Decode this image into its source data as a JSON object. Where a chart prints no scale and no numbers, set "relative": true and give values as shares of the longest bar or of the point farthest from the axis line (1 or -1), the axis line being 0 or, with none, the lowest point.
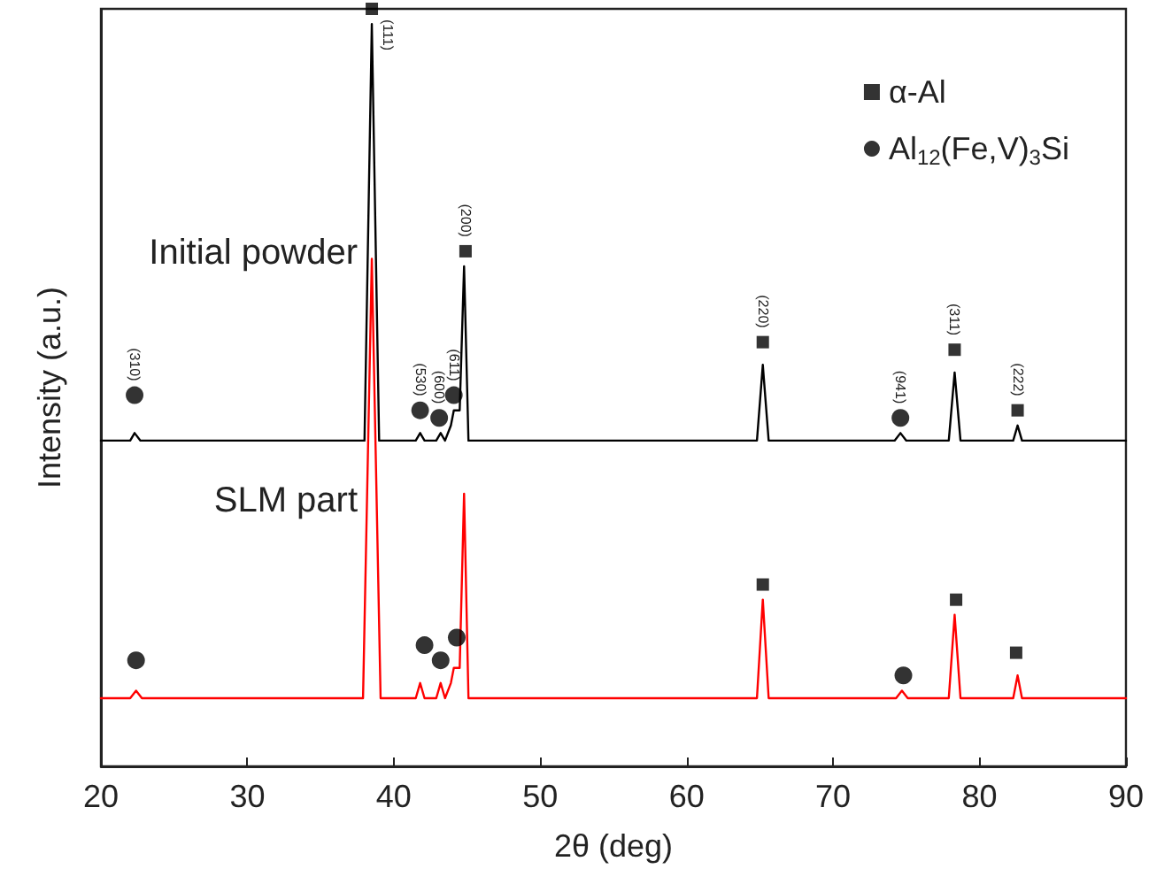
{
  "chart_data": {
    "type": "line",
    "relative": true,
    "xlabel": "2θ (deg)",
    "ylabel": "Intensity (a.u.)",
    "xlim": [
      20,
      90
    ],
    "xticks": [
      20,
      30,
      40,
      50,
      60,
      70,
      80,
      90
    ],
    "tick_labels": "x",
    "legend": "top right",
    "series": [
      {
        "name": "Initial powder",
        "color": "#000000",
        "x": [
          20,
          22.0,
          22.3,
          22.7,
          38.0,
          38.5,
          39.0,
          41.5,
          41.8,
          42.1,
          42.9,
          43.2,
          43.5,
          43.9,
          44.1,
          44.5,
          44.8,
          45.1,
          64.8,
          65.2,
          65.6,
          74.2,
          74.6,
          75.0,
          77.9,
          78.3,
          78.7,
          82.3,
          82.6,
          82.9,
          90
        ],
        "values": [
          0.43,
          0.43,
          0.44,
          0.43,
          0.43,
          0.98,
          0.43,
          0.43,
          0.44,
          0.43,
          0.43,
          0.44,
          0.43,
          0.45,
          0.47,
          0.47,
          0.66,
          0.43,
          0.43,
          0.53,
          0.43,
          0.43,
          0.44,
          0.43,
          0.43,
          0.52,
          0.43,
          0.43,
          0.45,
          0.43,
          0.43
        ]
      },
      {
        "name": "SLM part",
        "color": "#ff0000",
        "x": [
          20,
          22.0,
          22.4,
          22.8,
          37.9,
          38.5,
          39.1,
          41.5,
          41.8,
          42.1,
          42.9,
          43.2,
          43.5,
          43.9,
          44.1,
          44.5,
          44.8,
          45.1,
          64.8,
          65.2,
          65.6,
          74.3,
          74.7,
          75.1,
          77.9,
          78.3,
          78.7,
          82.3,
          82.6,
          82.9,
          90
        ],
        "values": [
          0.09,
          0.09,
          0.1,
          0.09,
          0.09,
          0.67,
          0.09,
          0.09,
          0.11,
          0.09,
          0.09,
          0.11,
          0.09,
          0.11,
          0.13,
          0.13,
          0.36,
          0.09,
          0.09,
          0.22,
          0.09,
          0.09,
          0.1,
          0.09,
          0.09,
          0.2,
          0.09,
          0.09,
          0.12,
          0.09,
          0.09
        ]
      },
      {
        "name": "α-Al",
        "type": "scatter",
        "marker": "square",
        "color": "#000000",
        "x": [
          38.5,
          44.9,
          65.2,
          78.3,
          82.6,
          65.2,
          78.4,
          82.5
        ],
        "values": [
          1.0,
          0.68,
          0.56,
          0.55,
          0.47,
          0.24,
          0.22,
          0.15
        ]
      },
      {
        "name": "Al$_{12}$(Fe,V)$_{3}$Si",
        "type": "scatter",
        "marker": "circle",
        "color": "#000000",
        "x": [
          22.3,
          41.8,
          43.1,
          44.1,
          74.6,
          22.4,
          42.1,
          43.2,
          44.3,
          74.8
        ],
        "values": [
          0.49,
          0.47,
          0.46,
          0.49,
          0.46,
          0.14,
          0.16,
          0.14,
          0.17,
          0.12
        ]
      }
    ],
    "annotations": [
      {
        "text": "(310)",
        "x": 22.3,
        "y": 0.49
      },
      {
        "text": "(111)",
        "x": 38.5,
        "y": 1.0
      },
      {
        "text": "(530)",
        "x": 41.8,
        "y": 0.47
      },
      {
        "text": "(600)",
        "x": 43.1,
        "y": 0.46
      },
      {
        "text": "(611)",
        "x": 44.1,
        "y": 0.49
      },
      {
        "text": "(200)",
        "x": 44.9,
        "y": 0.68
      },
      {
        "text": "(220)",
        "x": 65.2,
        "y": 0.56
      },
      {
        "text": "(941)",
        "x": 74.6,
        "y": 0.46
      },
      {
        "text": "(311)",
        "x": 78.3,
        "y": 0.55
      },
      {
        "text": "(222)",
        "x": 82.6,
        "y": 0.47
      }
    ]
  }
}
